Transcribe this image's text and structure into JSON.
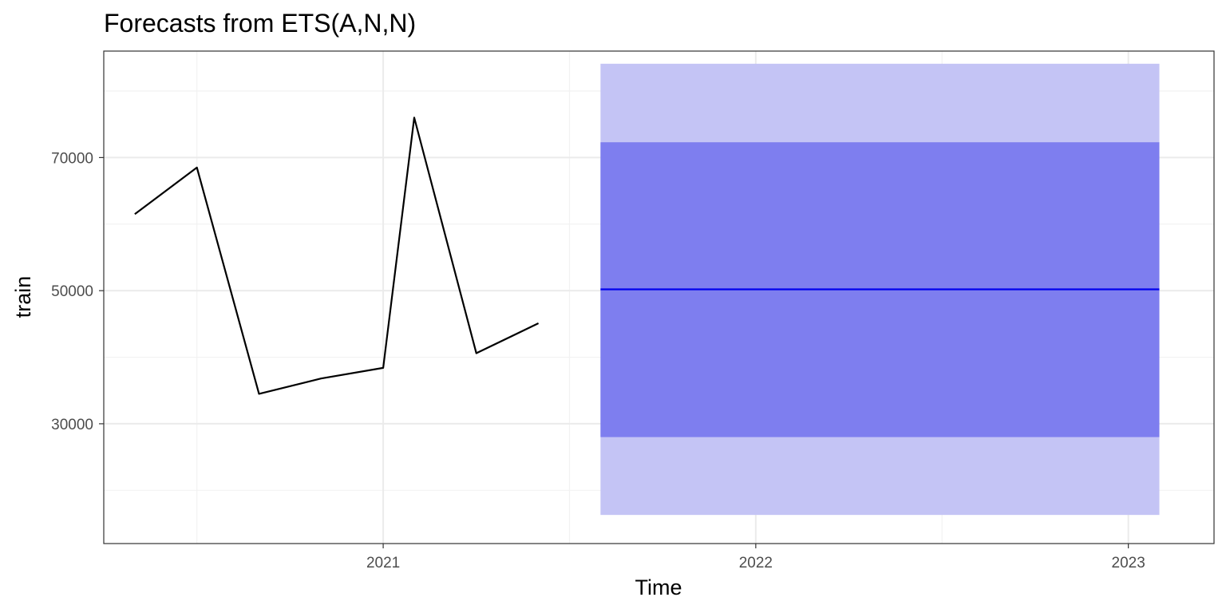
{
  "chart_data": {
    "type": "line",
    "title": "Forecasts from ETS(A,N,N)",
    "xlabel": "Time",
    "ylabel": "train",
    "xlim": [
      2020.25,
      2023.23
    ],
    "ylim": [
      12000,
      86000
    ],
    "x_ticks": [
      2021,
      2022,
      2023
    ],
    "x_tick_labels": [
      "2021",
      "2022",
      "2023"
    ],
    "y_ticks": [
      30000,
      50000,
      70000
    ],
    "y_tick_labels": [
      "30000",
      "50000",
      "70000"
    ],
    "grid": true,
    "legend": "none",
    "series": [
      {
        "kind": "observed",
        "x": [
          2020.3333,
          2020.5,
          2020.6667,
          2020.8333,
          2021.0,
          2021.0833,
          2021.25,
          2021.4167
        ],
        "values": [
          61500,
          68500,
          34500,
          36800,
          38400,
          76000,
          40600,
          45100
        ]
      }
    ],
    "forecast": {
      "x": [
        2021.5833,
        2023.0833
      ],
      "point": 50200,
      "pi80": [
        28000,
        72300
      ],
      "pi95": [
        16300,
        84100
      ]
    },
    "colors": {
      "observed": "#000000",
      "forecast_line": "#0000ee",
      "pi80_fill": "#7e7eef",
      "pi95_fill": "#c4c4f5",
      "grid_major": "#ebebeb",
      "grid_minor": "#f2f2f2",
      "panel_border": "#333333"
    }
  }
}
